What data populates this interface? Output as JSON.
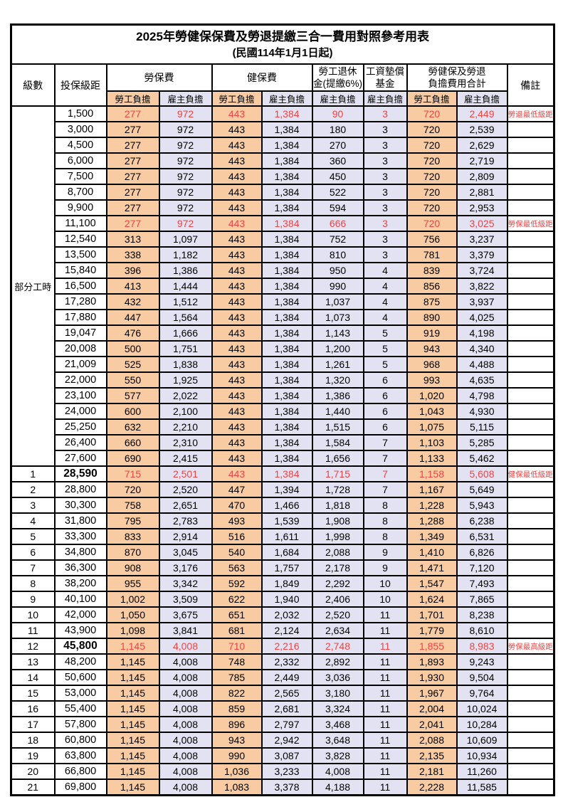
{
  "title": "2025年勞健保保費及勞退提繳三合一費用對照參考用表",
  "subtitle": "(民國114年1月1日起)",
  "header": {
    "level": "級數",
    "bracket": "投保級距",
    "labor_insurance": "勞保費",
    "health_insurance": "健保費",
    "pension_line1": "勞工退休",
    "pension_line2": "金(提繳6%)",
    "wage_fund_line1": "工資墊償",
    "wage_fund_line2": "基金",
    "total_line1": "勞健保及勞退",
    "total_line2": "負擔費用合計",
    "remark": "備註",
    "employee_share": "勞工負擔",
    "employer_share": "雇主負擔"
  },
  "part_time_label": "部分工時",
  "part_time_rowspan": 23,
  "colors": {
    "employee_bg": "#F9CBA2",
    "employer_bg": "#E3E2F3",
    "highlight_red": "#EE4444"
  },
  "rows": [
    {
      "level": "",
      "bracket": "1,500",
      "values": [
        "277",
        "972",
        "443",
        "1,384",
        "90",
        "3",
        "720",
        "2,449"
      ],
      "remark": "勞退最低級距",
      "highlight": true,
      "bold": false
    },
    {
      "level": "",
      "bracket": "3,000",
      "values": [
        "277",
        "972",
        "443",
        "1,384",
        "180",
        "3",
        "720",
        "2,539"
      ],
      "remark": "",
      "highlight": false,
      "bold": false
    },
    {
      "level": "",
      "bracket": "4,500",
      "values": [
        "277",
        "972",
        "443",
        "1,384",
        "270",
        "3",
        "720",
        "2,629"
      ],
      "remark": "",
      "highlight": false,
      "bold": false
    },
    {
      "level": "",
      "bracket": "6,000",
      "values": [
        "277",
        "972",
        "443",
        "1,384",
        "360",
        "3",
        "720",
        "2,719"
      ],
      "remark": "",
      "highlight": false,
      "bold": false
    },
    {
      "level": "",
      "bracket": "7,500",
      "values": [
        "277",
        "972",
        "443",
        "1,384",
        "450",
        "3",
        "720",
        "2,809"
      ],
      "remark": "",
      "highlight": false,
      "bold": false
    },
    {
      "level": "",
      "bracket": "8,700",
      "values": [
        "277",
        "972",
        "443",
        "1,384",
        "522",
        "3",
        "720",
        "2,881"
      ],
      "remark": "",
      "highlight": false,
      "bold": false
    },
    {
      "level": "",
      "bracket": "9,900",
      "values": [
        "277",
        "972",
        "443",
        "1,384",
        "594",
        "3",
        "720",
        "2,953"
      ],
      "remark": "",
      "highlight": false,
      "bold": false
    },
    {
      "level": "",
      "bracket": "11,100",
      "values": [
        "277",
        "972",
        "443",
        "1,384",
        "666",
        "3",
        "720",
        "3,025"
      ],
      "remark": "勞保最低級距",
      "highlight": true,
      "bold": false
    },
    {
      "level": "",
      "bracket": "12,540",
      "values": [
        "313",
        "1,097",
        "443",
        "1,384",
        "752",
        "3",
        "756",
        "3,237"
      ],
      "remark": "",
      "highlight": false,
      "bold": false
    },
    {
      "level": "",
      "bracket": "13,500",
      "values": [
        "338",
        "1,182",
        "443",
        "1,384",
        "810",
        "3",
        "781",
        "3,379"
      ],
      "remark": "",
      "highlight": false,
      "bold": false
    },
    {
      "level": "",
      "bracket": "15,840",
      "values": [
        "396",
        "1,386",
        "443",
        "1,384",
        "950",
        "4",
        "839",
        "3,724"
      ],
      "remark": "",
      "highlight": false,
      "bold": false
    },
    {
      "level": "",
      "bracket": "16,500",
      "values": [
        "413",
        "1,444",
        "443",
        "1,384",
        "990",
        "4",
        "856",
        "3,822"
      ],
      "remark": "",
      "highlight": false,
      "bold": false
    },
    {
      "level": "",
      "bracket": "17,280",
      "values": [
        "432",
        "1,512",
        "443",
        "1,384",
        "1,037",
        "4",
        "875",
        "3,937"
      ],
      "remark": "",
      "highlight": false,
      "bold": false
    },
    {
      "level": "",
      "bracket": "17,880",
      "values": [
        "447",
        "1,564",
        "443",
        "1,384",
        "1,073",
        "4",
        "890",
        "4,025"
      ],
      "remark": "",
      "highlight": false,
      "bold": false
    },
    {
      "level": "",
      "bracket": "19,047",
      "values": [
        "476",
        "1,666",
        "443",
        "1,384",
        "1,143",
        "5",
        "919",
        "4,198"
      ],
      "remark": "",
      "highlight": false,
      "bold": false
    },
    {
      "level": "",
      "bracket": "20,008",
      "values": [
        "500",
        "1,751",
        "443",
        "1,384",
        "1,200",
        "5",
        "943",
        "4,340"
      ],
      "remark": "",
      "highlight": false,
      "bold": false
    },
    {
      "level": "",
      "bracket": "21,009",
      "values": [
        "525",
        "1,838",
        "443",
        "1,384",
        "1,261",
        "5",
        "968",
        "4,488"
      ],
      "remark": "",
      "highlight": false,
      "bold": false
    },
    {
      "level": "",
      "bracket": "22,000",
      "values": [
        "550",
        "1,925",
        "443",
        "1,384",
        "1,320",
        "6",
        "993",
        "4,635"
      ],
      "remark": "",
      "highlight": false,
      "bold": false
    },
    {
      "level": "",
      "bracket": "23,100",
      "values": [
        "577",
        "2,022",
        "443",
        "1,384",
        "1,386",
        "6",
        "1,020",
        "4,798"
      ],
      "remark": "",
      "highlight": false,
      "bold": false
    },
    {
      "level": "",
      "bracket": "24,000",
      "values": [
        "600",
        "2,100",
        "443",
        "1,384",
        "1,440",
        "6",
        "1,043",
        "4,930"
      ],
      "remark": "",
      "highlight": false,
      "bold": false
    },
    {
      "level": "",
      "bracket": "25,250",
      "values": [
        "632",
        "2,210",
        "443",
        "1,384",
        "1,515",
        "6",
        "1,075",
        "5,115"
      ],
      "remark": "",
      "highlight": false,
      "bold": false
    },
    {
      "level": "",
      "bracket": "26,400",
      "values": [
        "660",
        "2,310",
        "443",
        "1,384",
        "1,584",
        "7",
        "1,103",
        "5,285"
      ],
      "remark": "",
      "highlight": false,
      "bold": false
    },
    {
      "level": "",
      "bracket": "27,600",
      "values": [
        "690",
        "2,415",
        "443",
        "1,384",
        "1,656",
        "7",
        "1,133",
        "5,462"
      ],
      "remark": "",
      "highlight": false,
      "bold": false
    },
    {
      "level": "1",
      "bracket": "28,590",
      "values": [
        "715",
        "2,501",
        "443",
        "1,384",
        "1,715",
        "7",
        "1,158",
        "5,608"
      ],
      "remark": "健保最低級距",
      "highlight": true,
      "bold": true
    },
    {
      "level": "2",
      "bracket": "28,800",
      "values": [
        "720",
        "2,520",
        "447",
        "1,394",
        "1,728",
        "7",
        "1,167",
        "5,649"
      ],
      "remark": "",
      "highlight": false,
      "bold": false
    },
    {
      "level": "3",
      "bracket": "30,300",
      "values": [
        "758",
        "2,651",
        "470",
        "1,466",
        "1,818",
        "8",
        "1,228",
        "5,943"
      ],
      "remark": "",
      "highlight": false,
      "bold": false
    },
    {
      "level": "4",
      "bracket": "31,800",
      "values": [
        "795",
        "2,783",
        "493",
        "1,539",
        "1,908",
        "8",
        "1,288",
        "6,238"
      ],
      "remark": "",
      "highlight": false,
      "bold": false
    },
    {
      "level": "5",
      "bracket": "33,300",
      "values": [
        "833",
        "2,914",
        "516",
        "1,611",
        "1,998",
        "8",
        "1,349",
        "6,531"
      ],
      "remark": "",
      "highlight": false,
      "bold": false
    },
    {
      "level": "6",
      "bracket": "34,800",
      "values": [
        "870",
        "3,045",
        "540",
        "1,684",
        "2,088",
        "9",
        "1,410",
        "6,826"
      ],
      "remark": "",
      "highlight": false,
      "bold": false
    },
    {
      "level": "7",
      "bracket": "36,300",
      "values": [
        "908",
        "3,176",
        "563",
        "1,757",
        "2,178",
        "9",
        "1,471",
        "7,120"
      ],
      "remark": "",
      "highlight": false,
      "bold": false
    },
    {
      "level": "8",
      "bracket": "38,200",
      "values": [
        "955",
        "3,342",
        "592",
        "1,849",
        "2,292",
        "10",
        "1,547",
        "7,493"
      ],
      "remark": "",
      "highlight": false,
      "bold": false
    },
    {
      "level": "9",
      "bracket": "40,100",
      "values": [
        "1,002",
        "3,509",
        "622",
        "1,940",
        "2,406",
        "10",
        "1,624",
        "7,865"
      ],
      "remark": "",
      "highlight": false,
      "bold": false
    },
    {
      "level": "10",
      "bracket": "42,000",
      "values": [
        "1,050",
        "3,675",
        "651",
        "2,032",
        "2,520",
        "11",
        "1,701",
        "8,238"
      ],
      "remark": "",
      "highlight": false,
      "bold": false
    },
    {
      "level": "11",
      "bracket": "43,900",
      "values": [
        "1,098",
        "3,841",
        "681",
        "2,124",
        "2,634",
        "11",
        "1,779",
        "8,610"
      ],
      "remark": "",
      "highlight": false,
      "bold": false
    },
    {
      "level": "12",
      "bracket": "45,800",
      "values": [
        "1,145",
        "4,008",
        "710",
        "2,216",
        "2,748",
        "11",
        "1,855",
        "8,983"
      ],
      "remark": "勞保最高級距",
      "highlight": true,
      "bold": true
    },
    {
      "level": "13",
      "bracket": "48,200",
      "values": [
        "1,145",
        "4,008",
        "748",
        "2,332",
        "2,892",
        "11",
        "1,893",
        "9,243"
      ],
      "remark": "",
      "highlight": false,
      "bold": false
    },
    {
      "level": "14",
      "bracket": "50,600",
      "values": [
        "1,145",
        "4,008",
        "785",
        "2,449",
        "3,036",
        "11",
        "1,930",
        "9,504"
      ],
      "remark": "",
      "highlight": false,
      "bold": false
    },
    {
      "level": "15",
      "bracket": "53,000",
      "values": [
        "1,145",
        "4,008",
        "822",
        "2,565",
        "3,180",
        "11",
        "1,967",
        "9,764"
      ],
      "remark": "",
      "highlight": false,
      "bold": false
    },
    {
      "level": "16",
      "bracket": "55,400",
      "values": [
        "1,145",
        "4,008",
        "859",
        "2,681",
        "3,324",
        "11",
        "2,004",
        "10,024"
      ],
      "remark": "",
      "highlight": false,
      "bold": false
    },
    {
      "level": "17",
      "bracket": "57,800",
      "values": [
        "1,145",
        "4,008",
        "896",
        "2,797",
        "3,468",
        "11",
        "2,041",
        "10,284"
      ],
      "remark": "",
      "highlight": false,
      "bold": false
    },
    {
      "level": "18",
      "bracket": "60,800",
      "values": [
        "1,145",
        "4,008",
        "943",
        "2,942",
        "3,648",
        "11",
        "2,088",
        "10,609"
      ],
      "remark": "",
      "highlight": false,
      "bold": false
    },
    {
      "level": "19",
      "bracket": "63,800",
      "values": [
        "1,145",
        "4,008",
        "990",
        "3,087",
        "3,828",
        "11",
        "2,135",
        "10,934"
      ],
      "remark": "",
      "highlight": false,
      "bold": false
    },
    {
      "level": "20",
      "bracket": "66,800",
      "values": [
        "1,145",
        "4,008",
        "1,036",
        "3,233",
        "4,008",
        "11",
        "2,181",
        "11,260"
      ],
      "remark": "",
      "highlight": false,
      "bold": false
    },
    {
      "level": "21",
      "bracket": "69,800",
      "values": [
        "1,145",
        "4,008",
        "1,083",
        "3,378",
        "4,188",
        "11",
        "2,228",
        "11,585"
      ],
      "remark": "",
      "highlight": false,
      "bold": false
    }
  ]
}
